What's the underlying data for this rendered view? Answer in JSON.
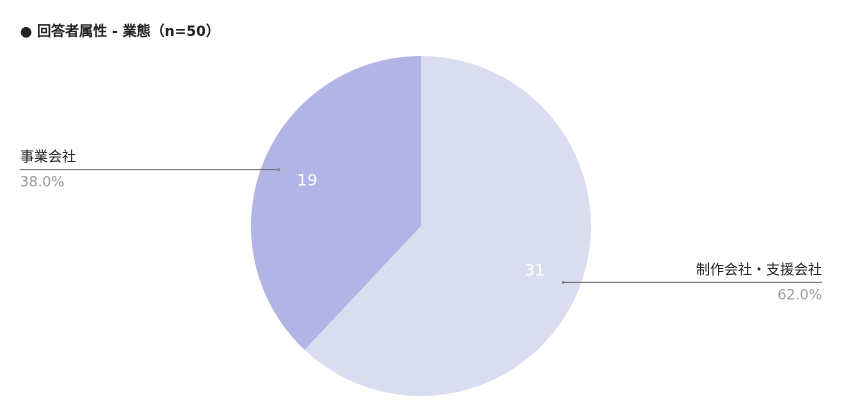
{
  "chart_data": {
    "type": "pie",
    "title": "● 回答者属性 - 業態（n=50）",
    "categories": [
      "制作会社・支援会社",
      "事業会社"
    ],
    "values": [
      31,
      19
    ],
    "percents": [
      62.0,
      38.0
    ],
    "percent_labels": [
      "62.0%",
      "38.0%"
    ],
    "colors": [
      "#dadcf0",
      "#b1b5e5"
    ]
  }
}
